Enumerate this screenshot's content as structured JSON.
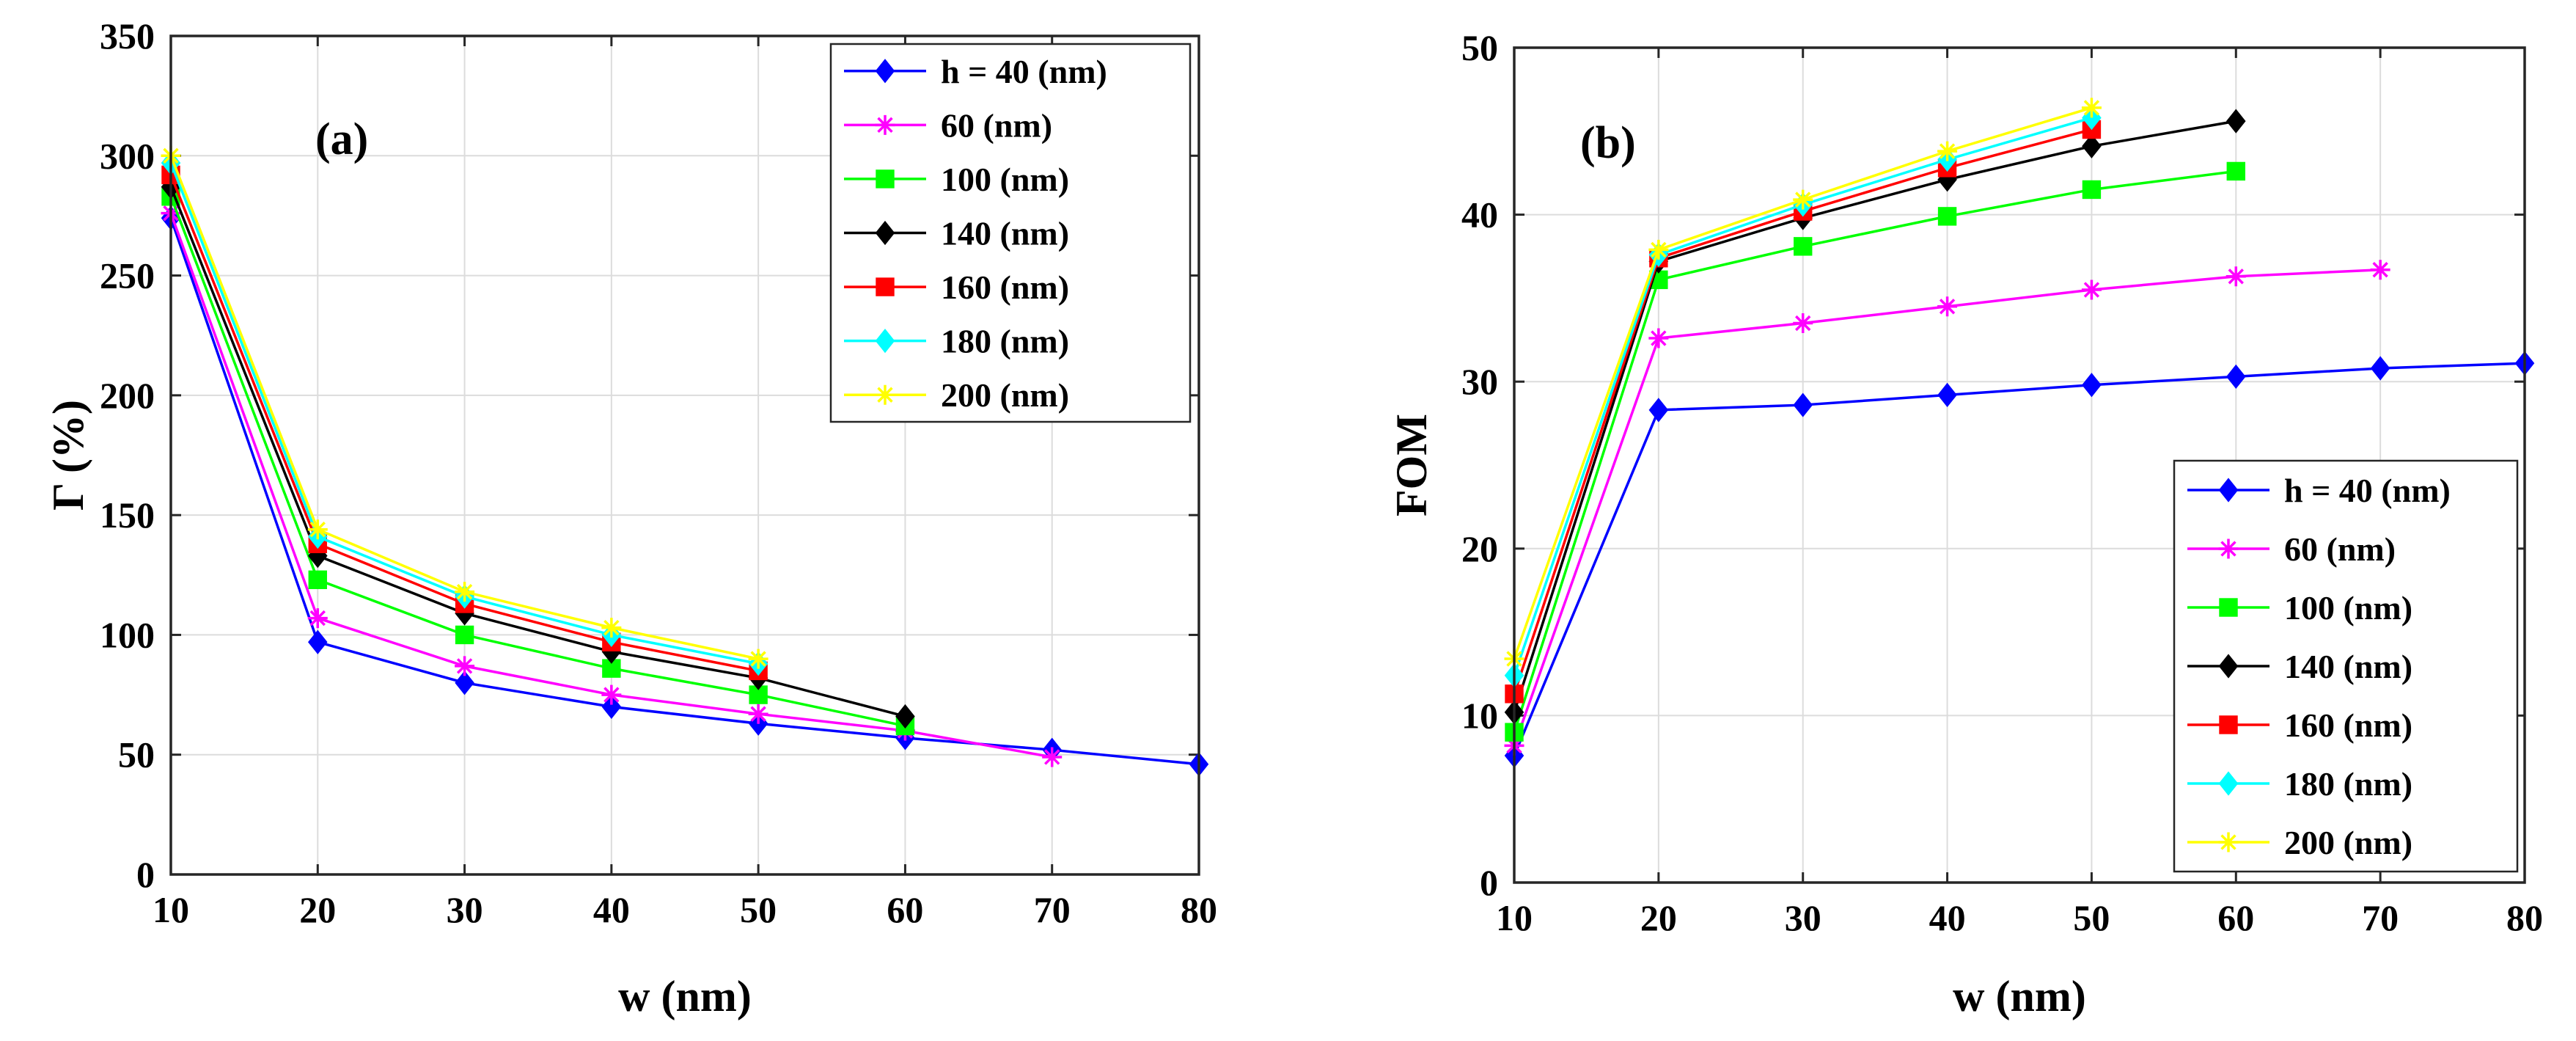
{
  "chart_data": [
    {
      "type": "line",
      "panel_label": "(a)",
      "xlabel": "w (nm)",
      "ylabel": "Γ (%)",
      "xlim": [
        10,
        80
      ],
      "ylim": [
        0,
        350
      ],
      "xticks": [
        10,
        20,
        30,
        40,
        50,
        60,
        70,
        80
      ],
      "yticks": [
        0,
        50,
        100,
        150,
        200,
        250,
        300,
        350
      ],
      "grid": true,
      "legend_position": "top-right",
      "series": [
        {
          "name": "h = 40 (nm)",
          "color": "#0000ff",
          "marker": "diamond",
          "x": [
            10,
            20,
            30,
            40,
            50,
            60,
            70,
            80
          ],
          "y": [
            274,
            97,
            80,
            70,
            63,
            57,
            52,
            46
          ]
        },
        {
          "name": "60 (nm)",
          "color": "#ff00ff",
          "marker": "star",
          "x": [
            10,
            20,
            30,
            40,
            50,
            60,
            70
          ],
          "y": [
            276,
            107,
            87,
            75,
            67,
            60,
            49
          ]
        },
        {
          "name": "100 (nm)",
          "color": "#00ff00",
          "marker": "square",
          "x": [
            10,
            20,
            30,
            40,
            50,
            60
          ],
          "y": [
            283,
            123,
            100,
            86,
            75,
            62
          ]
        },
        {
          "name": "140 (nm)",
          "color": "#000000",
          "marker": "diamond",
          "x": [
            10,
            20,
            30,
            40,
            50,
            60
          ],
          "y": [
            287,
            133,
            109,
            93,
            82,
            66
          ]
        },
        {
          "name": "160 (nm)",
          "color": "#ff0000",
          "marker": "square",
          "x": [
            10,
            20,
            30,
            40,
            50
          ],
          "y": [
            292,
            138,
            113,
            97,
            85
          ]
        },
        {
          "name": "180 (nm)",
          "color": "#00ffff",
          "marker": "diamond",
          "x": [
            10,
            20,
            30,
            40,
            50
          ],
          "y": [
            297,
            141,
            116,
            100,
            88
          ]
        },
        {
          "name": "200 (nm)",
          "color": "#ffff00",
          "marker": "star",
          "x": [
            10,
            20,
            30,
            40,
            50
          ],
          "y": [
            300,
            144,
            118,
            103,
            90
          ]
        }
      ]
    },
    {
      "type": "line",
      "panel_label": "(b)",
      "xlabel": "w (nm)",
      "ylabel": "FOM",
      "xlim": [
        10,
        80
      ],
      "ylim": [
        0,
        50
      ],
      "xticks": [
        10,
        20,
        30,
        40,
        50,
        60,
        70,
        80
      ],
      "yticks": [
        0,
        10,
        20,
        30,
        40,
        50
      ],
      "grid": true,
      "legend_position": "bottom-right",
      "series": [
        {
          "name": "h = 40 (nm)",
          "color": "#0000ff",
          "marker": "diamond",
          "x": [
            10,
            20,
            30,
            40,
            50,
            60,
            70,
            80
          ],
          "y": [
            7.6,
            28.3,
            28.6,
            29.2,
            29.8,
            30.3,
            30.8,
            31.1
          ]
        },
        {
          "name": "60 (nm)",
          "color": "#ff00ff",
          "marker": "star",
          "x": [
            10,
            20,
            30,
            40,
            50,
            60,
            70
          ],
          "y": [
            8.2,
            32.6,
            33.5,
            34.5,
            35.5,
            36.3,
            36.7
          ]
        },
        {
          "name": "100 (nm)",
          "color": "#00ff00",
          "marker": "square",
          "x": [
            10,
            20,
            30,
            40,
            50,
            60
          ],
          "y": [
            9.0,
            36.1,
            38.1,
            39.9,
            41.5,
            42.6
          ]
        },
        {
          "name": "140 (nm)",
          "color": "#000000",
          "marker": "diamond",
          "x": [
            10,
            20,
            30,
            40,
            50,
            60
          ],
          "y": [
            10.2,
            37.2,
            39.8,
            42.1,
            44.1,
            45.6
          ]
        },
        {
          "name": "160 (nm)",
          "color": "#ff0000",
          "marker": "square",
          "x": [
            10,
            20,
            30,
            40,
            50
          ],
          "y": [
            11.3,
            37.4,
            40.2,
            42.8,
            45.1
          ]
        },
        {
          "name": "180 (nm)",
          "color": "#00ffff",
          "marker": "diamond",
          "x": [
            10,
            20,
            30,
            40,
            50
          ],
          "y": [
            12.4,
            37.6,
            40.6,
            43.3,
            45.8
          ]
        },
        {
          "name": "200 (nm)",
          "color": "#ffff00",
          "marker": "star",
          "x": [
            10,
            20,
            30,
            40,
            50
          ],
          "y": [
            13.4,
            37.9,
            40.9,
            43.8,
            46.4
          ]
        }
      ]
    }
  ]
}
